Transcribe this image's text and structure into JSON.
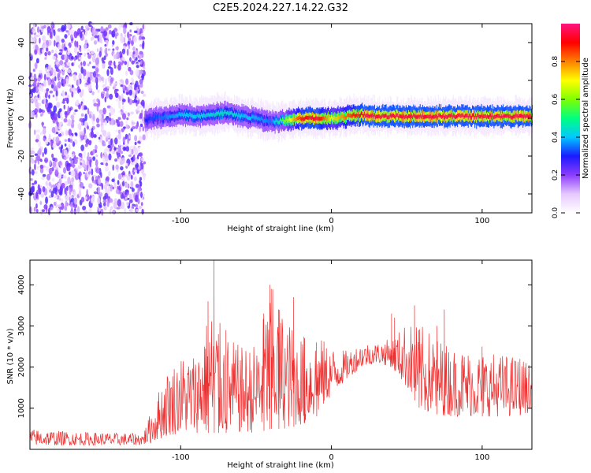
{
  "figure_title": "C2E5.2024.227.14.22.G32",
  "chart_data": [
    {
      "type": "heatmap",
      "xlabel": "Height of straight line (km)",
      "ylabel": "Frequency (Hz)",
      "xlim": [
        -200,
        133
      ],
      "ylim": [
        -50,
        50
      ],
      "xticks": [
        -100,
        0,
        100
      ],
      "yticks": [
        -40,
        -20,
        0,
        20,
        40
      ],
      "colorbar": {
        "label": "Normalized spectral amplitude",
        "range": [
          0,
          1
        ],
        "ticks": [
          "0.0",
          "0.2",
          "0.4",
          "0.6",
          "0.8"
        ],
        "colormap": [
          "#ffffff",
          "#e6c8ff",
          "#8c3cff",
          "#1a1aff",
          "#00c8ff",
          "#00ff80",
          "#80ff00",
          "#ffff00",
          "#ff8000",
          "#ff0000",
          "#ff1480"
        ]
      },
      "center_frequency_track": {
        "x": [
          -124,
          -110,
          -100,
          -90,
          -80,
          -70,
          -60,
          -50,
          -40,
          -30,
          -20,
          -10,
          0,
          10,
          20,
          30,
          40,
          60,
          80,
          100,
          120,
          133
        ],
        "y": [
          -1,
          1,
          2,
          1,
          2,
          3,
          1,
          0,
          -2,
          -1,
          0,
          0,
          0,
          1,
          2,
          1,
          1,
          1,
          1,
          1,
          1,
          1
        ]
      },
      "peak_amplitude": {
        "x": [
          -124,
          -100,
          -70,
          -40,
          -20,
          -10,
          0,
          20,
          40,
          80,
          133
        ],
        "y": [
          0.3,
          0.4,
          0.45,
          0.35,
          0.9,
          0.95,
          0.7,
          0.95,
          0.95,
          0.95,
          0.95
        ]
      },
      "noise_region_x": [
        -200,
        -124
      ]
    },
    {
      "type": "line",
      "xlabel": "Height of straight line (km)",
      "ylabel": "SNR (10 * v/v)",
      "xlim": [
        -200,
        133
      ],
      "ylim": [
        0,
        4600
      ],
      "xticks": [
        -100,
        0,
        100
      ],
      "yticks": [
        1000,
        2000,
        3000,
        4000
      ],
      "series": [
        {
          "color": "#ee3030",
          "envelope": {
            "x": [
              -200,
              -180,
              -160,
              -140,
              -125,
              -120,
              -110,
              -100,
              -90,
              -80,
              -70,
              -60,
              -50,
              -40,
              -30,
              -20,
              -10,
              0,
              10,
              20,
              30,
              40,
              50,
              60,
              80,
              100,
              120,
              133
            ],
            "low": [
              100,
              100,
              100,
              100,
              110,
              150,
              300,
              400,
              400,
              400,
              400,
              400,
              400,
              500,
              500,
              600,
              800,
              1300,
              1700,
              2000,
              2100,
              2000,
              1500,
              900,
              800,
              800,
              800,
              900
            ],
            "high": [
              500,
              450,
              420,
              400,
              400,
              900,
              1900,
              2300,
              2400,
              3500,
              2800,
              2500,
              2600,
              4000,
              3200,
              2800,
              2800,
              2500,
              2400,
              2600,
              2600,
              2700,
              3100,
              3000,
              2500,
              2400,
              2300,
              2100
            ]
          },
          "spikes": {
            "x": [
              -82,
              -78,
              -75,
              -70,
              -45,
              -41,
              -40,
              -35,
              -25,
              -18,
              -10,
              40,
              42,
              55,
              58,
              70,
              75,
              100,
              125
            ],
            "y": [
              3600,
              4600,
              2800,
              2900,
              3300,
              4000,
              3900,
              3400,
              3700,
              2700,
              2600,
              3300,
              3200,
              3500,
              2900,
              3000,
              3400,
              2500,
              2200
            ]
          }
        }
      ]
    }
  ]
}
